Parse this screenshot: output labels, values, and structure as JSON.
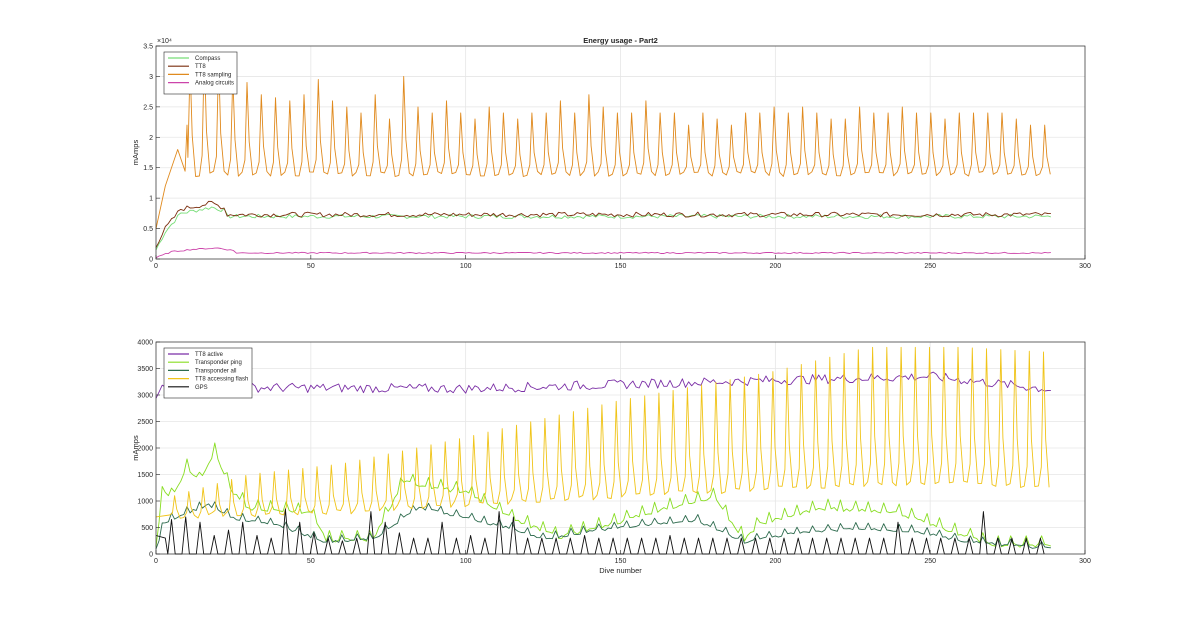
{
  "chart_data": [
    {
      "type": "line",
      "title": "Energy usage - Part2",
      "xlabel": "",
      "ylabel": "mAmps",
      "y_exponent_label": "×10⁴",
      "xlim": [
        0,
        300
      ],
      "ylim": [
        0,
        35000
      ],
      "xticks": [
        0,
        50,
        100,
        150,
        200,
        250,
        300
      ],
      "xtick_labels": [
        "0",
        "50",
        "100",
        "150",
        "200",
        "250",
        "300"
      ],
      "yticks": [
        0,
        5000,
        10000,
        15000,
        20000,
        25000,
        30000,
        35000
      ],
      "ytick_labels": [
        "0",
        "0.5",
        "1",
        "1.5",
        "2",
        "2.5",
        "3",
        "3.5"
      ],
      "grid": true,
      "legend_position": "top-left",
      "series": [
        {
          "name": "Compass",
          "color": "#77dd77",
          "kind": "base",
          "base": 7000,
          "start": [
            [
              0,
              1500
            ],
            [
              3,
              4500
            ],
            [
              8,
              7500
            ],
            [
              18,
              8500
            ],
            [
              22,
              8000
            ]
          ],
          "noise": 700
        },
        {
          "name": "TT8",
          "color": "#7a2e0e",
          "kind": "base",
          "base": 7300,
          "start": [
            [
              0,
              2200
            ],
            [
              3,
              5000
            ],
            [
              8,
              8200
            ],
            [
              18,
              9200
            ],
            [
              22,
              8400
            ]
          ],
          "noise": 800
        },
        {
          "name": "TT8 sampling",
          "color": "#e08a1e",
          "kind": "spikes",
          "start_x": 11,
          "period": 4.6,
          "base": 14000,
          "peaks": [
            32000,
            34000,
            33000,
            30000,
            29000,
            27000,
            26500,
            26000,
            27000,
            29500,
            26000,
            25000,
            24000,
            27000,
            23000,
            30000,
            25000,
            24000,
            26000,
            24000,
            23000,
            25000,
            24000,
            23000,
            24000,
            24000,
            26000,
            24000,
            27000,
            25000,
            24000,
            24000,
            26000,
            24000,
            24000,
            22000,
            24000,
            23000,
            22000,
            24000,
            24000,
            25000,
            24000,
            25000,
            24000,
            23000,
            23000,
            25000,
            24000,
            24000,
            25000,
            24000,
            24000,
            23000,
            24000,
            24000,
            24000,
            24000,
            23000,
            22000,
            22000,
            24000
          ],
          "ramp": [
            [
              0,
              5000
            ],
            [
              3,
              12000
            ],
            [
              7,
              18000
            ],
            [
              10,
              22000
            ]
          ],
          "noise": 900
        },
        {
          "name": "Analog circuits",
          "color": "#cc44aa",
          "kind": "base",
          "base": 1000,
          "start": [
            [
              0,
              200
            ],
            [
              5,
              1200
            ],
            [
              12,
              1600
            ],
            [
              20,
              1800
            ],
            [
              25,
              1400
            ]
          ],
          "noise": 200
        }
      ]
    },
    {
      "type": "line",
      "title": "",
      "xlabel": "Dive number",
      "ylabel": "mAmps",
      "xlim": [
        0,
        300
      ],
      "ylim": [
        0,
        4000
      ],
      "xticks": [
        0,
        50,
        100,
        150,
        200,
        250,
        300
      ],
      "xtick_labels": [
        "0",
        "50",
        "100",
        "150",
        "200",
        "250",
        "300"
      ],
      "yticks": [
        0,
        500,
        1000,
        1500,
        2000,
        2500,
        3000,
        3500,
        4000
      ],
      "ytick_labels": [
        "0",
        "500",
        "1000",
        "1500",
        "2000",
        "2500",
        "3000",
        "3500",
        "4000"
      ],
      "grid": true,
      "legend_position": "top-left",
      "series": [
        {
          "name": "TT8 active",
          "color": "#7b2fa6",
          "kind": "base",
          "base": 3150,
          "start": [
            [
              0,
              2900
            ],
            [
              3,
              3200
            ]
          ],
          "trend": [
            [
              0,
              3150
            ],
            [
              100,
              3120
            ],
            [
              150,
              3200
            ],
            [
              200,
              3280
            ],
            [
              250,
              3350
            ],
            [
              290,
              3100
            ]
          ],
          "noise": 180
        },
        {
          "name": "Transponder ping",
          "color": "#88dd22",
          "kind": "envelope",
          "points": [
            [
              0,
              0
            ],
            [
              2,
              1300
            ],
            [
              5,
              1100
            ],
            [
              10,
              1650
            ],
            [
              14,
              1400
            ],
            [
              19,
              1950
            ],
            [
              24,
              1250
            ],
            [
              30,
              900
            ],
            [
              50,
              800
            ],
            [
              55,
              300
            ],
            [
              70,
              300
            ],
            [
              80,
              1400
            ],
            [
              88,
              1300
            ],
            [
              100,
              1200
            ],
            [
              115,
              700
            ],
            [
              130,
              350
            ],
            [
              140,
              500
            ],
            [
              150,
              650
            ],
            [
              165,
              900
            ],
            [
              180,
              1100
            ],
            [
              190,
              300
            ],
            [
              195,
              600
            ],
            [
              215,
              900
            ],
            [
              240,
              800
            ],
            [
              260,
              400
            ],
            [
              270,
              200
            ],
            [
              290,
              200
            ]
          ],
          "noise": 180
        },
        {
          "name": "Transponder all",
          "color": "#2e6b4e",
          "kind": "envelope",
          "points": [
            [
              0,
              0
            ],
            [
              2,
              600
            ],
            [
              10,
              800
            ],
            [
              17,
              950
            ],
            [
              25,
              700
            ],
            [
              40,
              550
            ],
            [
              55,
              250
            ],
            [
              70,
              300
            ],
            [
              85,
              900
            ],
            [
              100,
              700
            ],
            [
              115,
              500
            ],
            [
              125,
              300
            ],
            [
              140,
              450
            ],
            [
              155,
              550
            ],
            [
              175,
              650
            ],
            [
              190,
              250
            ],
            [
              205,
              400
            ],
            [
              225,
              500
            ],
            [
              245,
              450
            ],
            [
              262,
              250
            ],
            [
              290,
              120
            ]
          ],
          "noise": 120
        },
        {
          "name": "TT8 accessing flash",
          "color": "#f0c419",
          "kind": "spikes",
          "start_x": 6,
          "period": 4.6,
          "base_trend": [
            [
              0,
              700
            ],
            [
              60,
              800
            ],
            [
              100,
              950
            ],
            [
              150,
              1100
            ],
            [
              200,
              1250
            ],
            [
              250,
              1350
            ],
            [
              290,
              1250
            ]
          ],
          "peak_trend": [
            [
              6,
              1100
            ],
            [
              30,
              1500
            ],
            [
              60,
              1700
            ],
            [
              100,
              2200
            ],
            [
              150,
              2900
            ],
            [
              200,
              3450
            ],
            [
              230,
              3900
            ],
            [
              260,
              3900
            ],
            [
              290,
              3800
            ]
          ],
          "noise": 100
        },
        {
          "name": "GPS",
          "color": "#111111",
          "kind": "gps",
          "start_x": 5,
          "period": 4.6,
          "peaks": [
            650,
            700,
            600,
            350,
            450,
            600,
            350,
            300,
            850,
            600,
            400,
            300,
            250,
            300,
            800,
            600,
            400,
            300,
            300,
            600,
            300,
            350,
            300,
            800,
            700,
            300,
            300,
            300,
            300,
            350,
            300,
            300,
            300,
            300,
            300,
            350,
            300,
            300,
            300,
            300,
            300,
            300,
            300,
            300,
            300,
            300,
            300,
            300,
            300,
            300,
            300,
            600,
            300,
            300,
            300,
            300,
            300,
            800,
            300,
            300,
            300,
            300
          ]
        }
      ]
    }
  ]
}
